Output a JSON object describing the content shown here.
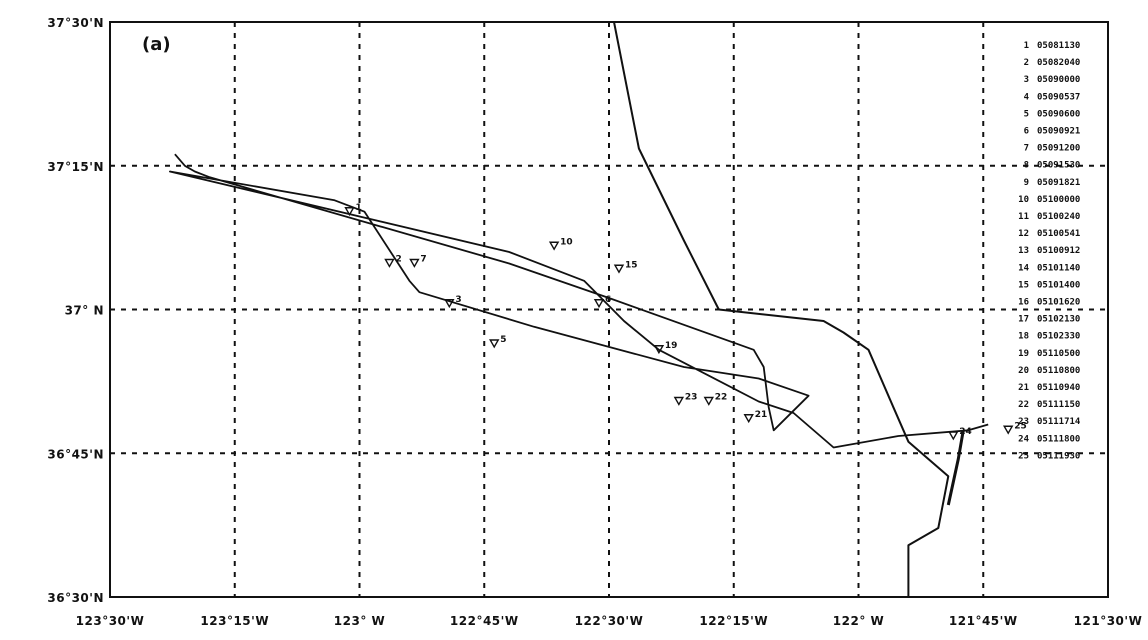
{
  "figure": {
    "panel_label": "(a)",
    "colors": {
      "ink": "#111111",
      "background": "#ffffff"
    }
  },
  "chart_data": {
    "type": "map",
    "lon_range": [
      -123.5,
      -121.5
    ],
    "lat_range": [
      36.5,
      37.5
    ],
    "grid": "dashed",
    "legend_position": "right",
    "x_ticks": [
      {
        "value": -123.5,
        "label": "123°30'W"
      },
      {
        "value": -123.25,
        "label": "123°15'W"
      },
      {
        "value": -123.0,
        "label": "123° W"
      },
      {
        "value": -122.75,
        "label": "122°45'W"
      },
      {
        "value": -122.5,
        "label": "122°30'W"
      },
      {
        "value": -122.25,
        "label": "122°15'W"
      },
      {
        "value": -122.0,
        "label": "122° W"
      },
      {
        "value": -121.75,
        "label": "121°45'W"
      },
      {
        "value": -121.5,
        "label": "121°30'W"
      }
    ],
    "y_ticks": [
      {
        "value": 37.5,
        "label": "37°30'N"
      },
      {
        "value": 37.25,
        "label": "37°15'N"
      },
      {
        "value": 37.0,
        "label": "37° N"
      },
      {
        "value": 36.75,
        "label": "36°45'N"
      },
      {
        "value": 36.5,
        "label": "36°30'N"
      }
    ],
    "coastline": [
      [
        -122.49,
        37.5
      ],
      [
        -122.44,
        37.28
      ],
      [
        -122.35,
        37.12
      ],
      [
        -122.28,
        37.0
      ],
      [
        -122.07,
        36.98
      ],
      [
        -122.03,
        36.96
      ],
      [
        -121.98,
        36.93
      ],
      [
        -121.93,
        36.83
      ],
      [
        -121.9,
        36.77
      ],
      [
        -121.82,
        36.71
      ],
      [
        -121.84,
        36.62
      ],
      [
        -121.9,
        36.59
      ],
      [
        -121.9,
        36.5
      ]
    ],
    "track": [
      [
        -123.37,
        37.27
      ],
      [
        -123.35,
        37.25
      ],
      [
        -123.33,
        37.24
      ],
      [
        -123.3,
        37.23
      ],
      [
        -122.7,
        37.08
      ],
      [
        -122.5,
        37.02
      ],
      [
        -122.21,
        36.93
      ],
      [
        -122.19,
        36.9
      ],
      [
        -122.18,
        36.83
      ],
      [
        -122.17,
        36.79
      ],
      [
        -122.1,
        36.85
      ],
      [
        -122.2,
        36.88
      ],
      [
        -122.35,
        36.9
      ],
      [
        -122.65,
        36.97
      ],
      [
        -122.88,
        37.03
      ],
      [
        -122.9,
        37.05
      ],
      [
        -122.99,
        37.17
      ],
      [
        -123.05,
        37.19
      ],
      [
        -123.38,
        37.24
      ],
      [
        -122.7,
        37.1
      ],
      [
        -122.55,
        37.05
      ],
      [
        -122.47,
        36.98
      ],
      [
        -122.4,
        36.93
      ],
      [
        -122.2,
        36.84
      ],
      [
        -122.13,
        36.82
      ],
      [
        -122.05,
        36.76
      ],
      [
        -121.92,
        36.78
      ],
      [
        -121.78,
        36.79
      ],
      [
        -121.74,
        36.8
      ]
    ],
    "drifter_near_shore": [
      [
        -121.79,
        36.79
      ],
      [
        -121.8,
        36.74
      ],
      [
        -121.81,
        36.7
      ],
      [
        -121.82,
        36.66
      ]
    ],
    "markers": [
      {
        "label": "1",
        "lon": -123.02,
        "lat": 37.17
      },
      {
        "label": "2",
        "lon": -122.94,
        "lat": 37.08
      },
      {
        "label": "3",
        "lon": -122.82,
        "lat": 37.01
      },
      {
        "label": "5",
        "lon": -122.73,
        "lat": 36.94
      },
      {
        "label": "6",
        "lon": -122.52,
        "lat": 37.01
      },
      {
        "label": "7",
        "lon": -122.89,
        "lat": 37.08
      },
      {
        "label": "10",
        "lon": -122.61,
        "lat": 37.11
      },
      {
        "label": "15",
        "lon": -122.48,
        "lat": 37.07
      },
      {
        "label": "19",
        "lon": -122.4,
        "lat": 36.93
      },
      {
        "label": "21",
        "lon": -122.22,
        "lat": 36.81
      },
      {
        "label": "22",
        "lon": -122.3,
        "lat": 36.84
      },
      {
        "label": "23",
        "lon": -122.36,
        "lat": 36.84
      },
      {
        "label": "24",
        "lon": -121.81,
        "lat": 36.78
      },
      {
        "label": "25",
        "lon": -121.7,
        "lat": 36.79
      }
    ],
    "legend": [
      {
        "id": "1",
        "value": "05081130"
      },
      {
        "id": "2",
        "value": "05082040"
      },
      {
        "id": "3",
        "value": "05090000"
      },
      {
        "id": "4",
        "value": "05090537"
      },
      {
        "id": "5",
        "value": "05090600"
      },
      {
        "id": "6",
        "value": "05090921"
      },
      {
        "id": "7",
        "value": "05091200"
      },
      {
        "id": "8",
        "value": "05091530"
      },
      {
        "id": "9",
        "value": "05091821"
      },
      {
        "id": "10",
        "value": "05100000"
      },
      {
        "id": "11",
        "value": "05100240"
      },
      {
        "id": "12",
        "value": "05100541"
      },
      {
        "id": "13",
        "value": "05100912"
      },
      {
        "id": "14",
        "value": "05101140"
      },
      {
        "id": "15",
        "value": "05101400"
      },
      {
        "id": "16",
        "value": "05101620"
      },
      {
        "id": "17",
        "value": "05102130"
      },
      {
        "id": "18",
        "value": "05102330"
      },
      {
        "id": "19",
        "value": "05110500"
      },
      {
        "id": "20",
        "value": "05110800"
      },
      {
        "id": "21",
        "value": "05110940"
      },
      {
        "id": "22",
        "value": "05111150"
      },
      {
        "id": "23",
        "value": "05111714"
      },
      {
        "id": "24",
        "value": "05111800"
      },
      {
        "id": "25",
        "value": "05111930"
      }
    ]
  }
}
